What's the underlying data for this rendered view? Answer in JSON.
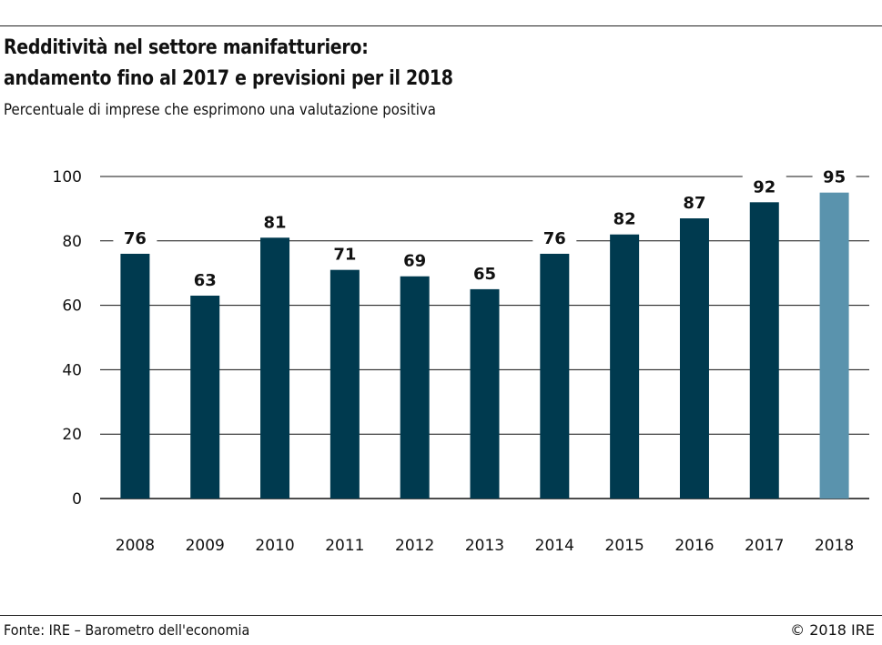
{
  "header": {
    "title_line1": "Redditività nel settore manifatturiero:",
    "title_line2": "andamento fino al 2017 e previsioni per il 2018",
    "subtitle": "Percentuale di imprese che esprimono una valutazione positiva"
  },
  "footer": {
    "source": "Fonte: IRE – Barometro dell'economia",
    "copyright": "© 2018 IRE"
  },
  "colors": {
    "bar": "#003a4f",
    "bar_forecast": "#5a93ad",
    "grid": "#111111"
  },
  "chart_data": {
    "type": "bar",
    "title": "Redditività nel settore manifatturiero: andamento fino al 2017 e previsioni per il 2018",
    "subtitle": "Percentuale di imprese che esprimono una valutazione positiva",
    "xlabel": "",
    "ylabel": "",
    "categories": [
      "2008",
      "2009",
      "2010",
      "2011",
      "2012",
      "2013",
      "2014",
      "2015",
      "2016",
      "2017",
      "2018"
    ],
    "values": [
      76,
      63,
      81,
      71,
      69,
      65,
      76,
      82,
      87,
      92,
      95
    ],
    "forecast_categories": [
      "2018"
    ],
    "ylim": [
      0,
      100
    ],
    "yticks": [
      0,
      20,
      40,
      60,
      80,
      100
    ],
    "grid": true,
    "data_labels": true
  }
}
